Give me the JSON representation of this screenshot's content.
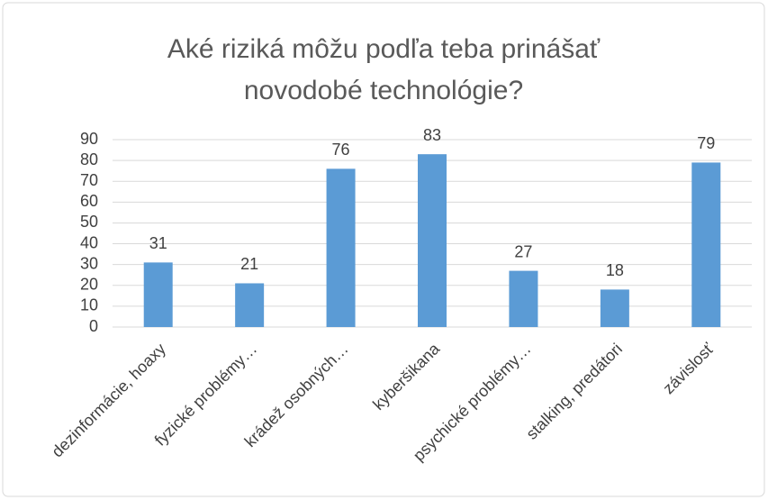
{
  "chart_data": {
    "type": "bar",
    "title": "Aké riziká môžu podľa teba prinášať novodobé technológie?",
    "categories": [
      "dezinformácie, hoaxy",
      "fyzické problémy…",
      "krádež osobných…",
      "kyberšikana",
      "psychické problémy…",
      "stalking, predátori",
      "závislosť"
    ],
    "values": [
      31,
      21,
      76,
      83,
      27,
      18,
      79
    ],
    "color": "#5b9bd5",
    "ylim": [
      0,
      90
    ],
    "yticks": [
      0,
      10,
      20,
      30,
      40,
      50,
      60,
      70,
      80,
      90
    ],
    "grid": true,
    "data_labels": true
  }
}
